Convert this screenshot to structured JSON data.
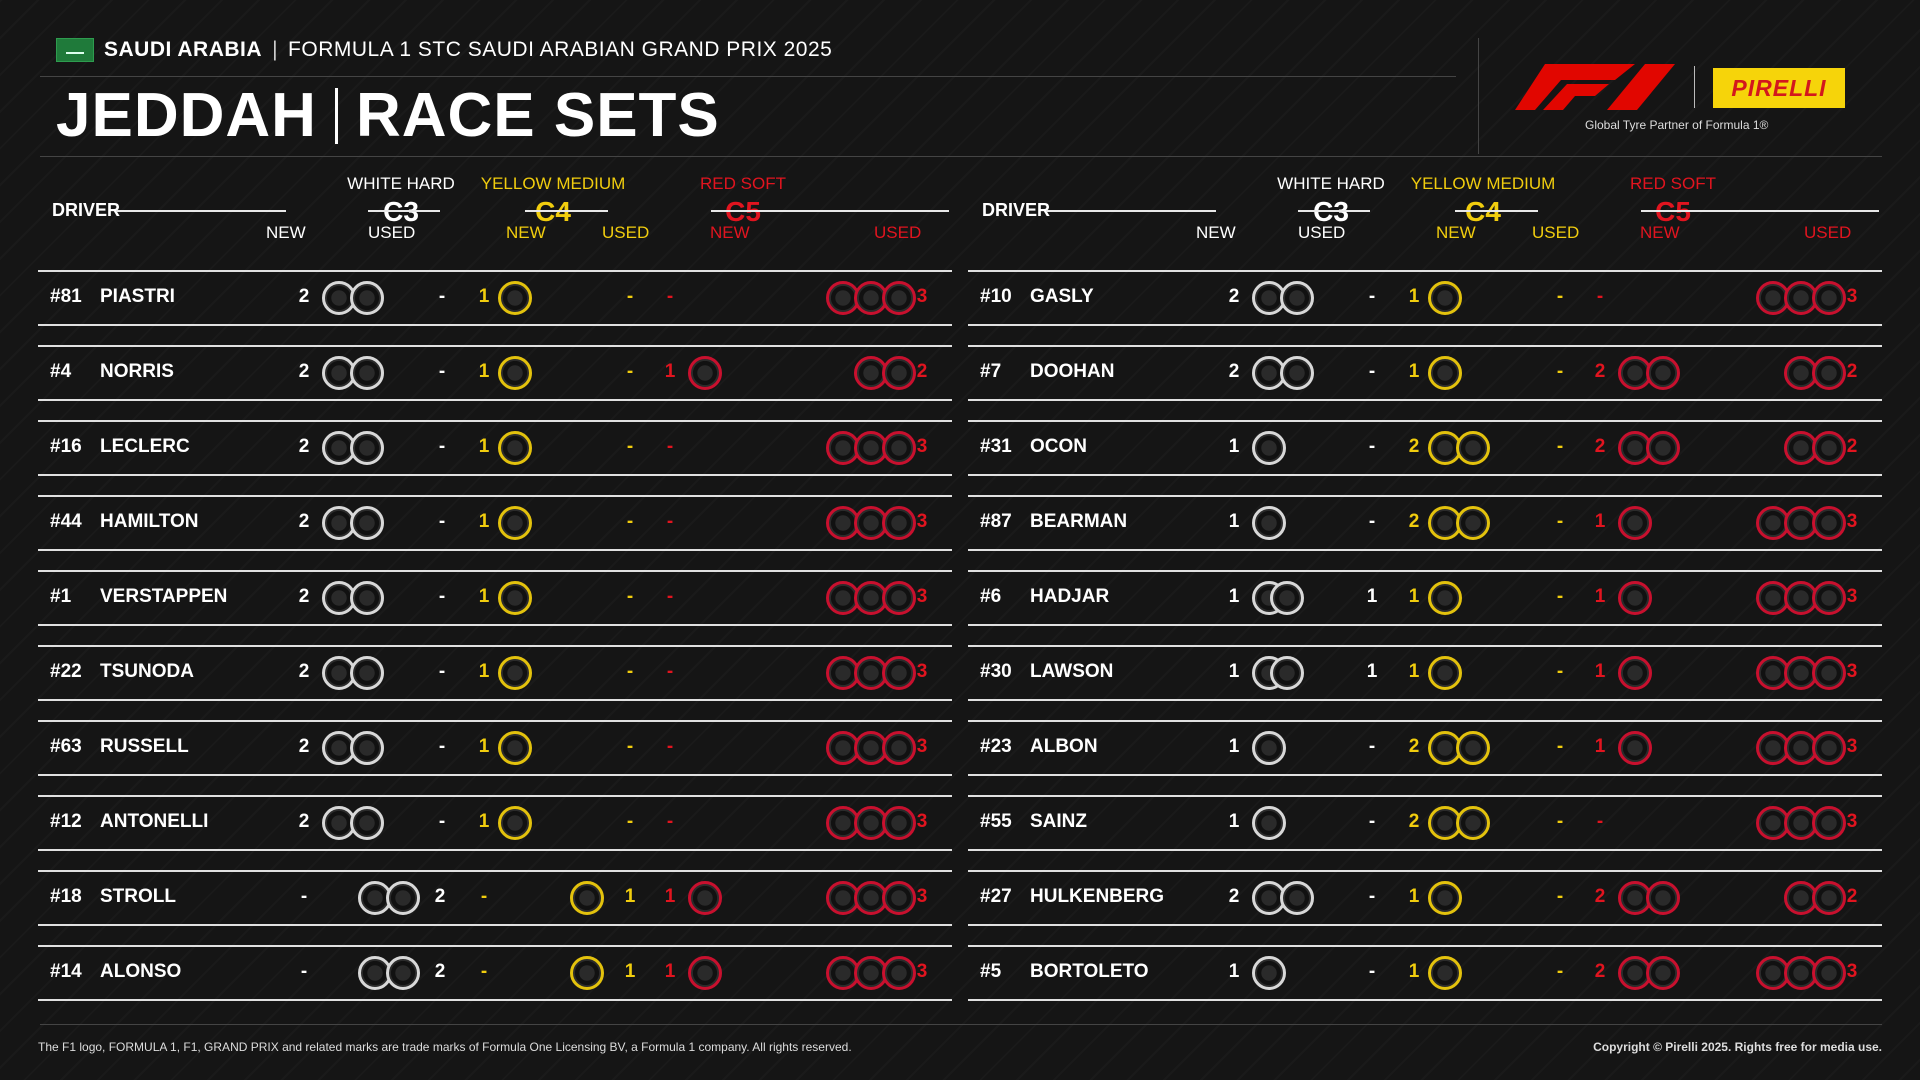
{
  "header": {
    "country": "SAUDI ARABIA",
    "event": "FORMULA 1 STC SAUDI ARABIAN GRAND PRIX 2025",
    "venue": "JEDDAH",
    "section": "RACE SETS",
    "partner": "Global Tyre Partner of Formula 1®",
    "pirelli": "PIRELLI"
  },
  "columns": {
    "driver": "DRIVER",
    "c3": {
      "label": "WHITE HARD",
      "code": "C3"
    },
    "c4": {
      "label": "YELLOW MEDIUM",
      "code": "C4"
    },
    "c5": {
      "label": "RED SOFT",
      "code": "C5"
    },
    "new": "NEW",
    "used": "USED"
  },
  "colors": {
    "white": "#d8d8d8",
    "yellow": "#e3c20d",
    "red": "#c8102e"
  },
  "left": [
    {
      "num": "#81",
      "name": "PIASTRI",
      "c3n": "2",
      "c3u": "-",
      "c4n": "1",
      "c4u": "-",
      "c5n": "-",
      "c5u": "3"
    },
    {
      "num": "#4",
      "name": "NORRIS",
      "c3n": "2",
      "c3u": "-",
      "c4n": "1",
      "c4u": "-",
      "c5n": "1",
      "c5u": "2"
    },
    {
      "num": "#16",
      "name": "LECLERC",
      "c3n": "2",
      "c3u": "-",
      "c4n": "1",
      "c4u": "-",
      "c5n": "-",
      "c5u": "3"
    },
    {
      "num": "#44",
      "name": "HAMILTON",
      "c3n": "2",
      "c3u": "-",
      "c4n": "1",
      "c4u": "-",
      "c5n": "-",
      "c5u": "3"
    },
    {
      "num": "#1",
      "name": "VERSTAPPEN",
      "c3n": "2",
      "c3u": "-",
      "c4n": "1",
      "c4u": "-",
      "c5n": "-",
      "c5u": "3"
    },
    {
      "num": "#22",
      "name": "TSUNODA",
      "c3n": "2",
      "c3u": "-",
      "c4n": "1",
      "c4u": "-",
      "c5n": "-",
      "c5u": "3"
    },
    {
      "num": "#63",
      "name": "RUSSELL",
      "c3n": "2",
      "c3u": "-",
      "c4n": "1",
      "c4u": "-",
      "c5n": "-",
      "c5u": "3"
    },
    {
      "num": "#12",
      "name": "ANTONELLI",
      "c3n": "2",
      "c3u": "-",
      "c4n": "1",
      "c4u": "-",
      "c5n": "-",
      "c5u": "3"
    },
    {
      "num": "#18",
      "name": "STROLL",
      "c3n": "-",
      "c3u": "2",
      "c4n": "-",
      "c4u": "1",
      "c5n": "1",
      "c5u": "3"
    },
    {
      "num": "#14",
      "name": "ALONSO",
      "c3n": "-",
      "c3u": "2",
      "c4n": "-",
      "c4u": "1",
      "c5n": "1",
      "c5u": "3"
    }
  ],
  "right": [
    {
      "num": "#10",
      "name": "GASLY",
      "c3n": "2",
      "c3u": "-",
      "c4n": "1",
      "c4u": "-",
      "c5n": "-",
      "c5u": "3"
    },
    {
      "num": "#7",
      "name": "DOOHAN",
      "c3n": "2",
      "c3u": "-",
      "c4n": "1",
      "c4u": "-",
      "c5n": "2",
      "c5u": "2"
    },
    {
      "num": "#31",
      "name": "OCON",
      "c3n": "1",
      "c3u": "-",
      "c4n": "2",
      "c4u": "-",
      "c5n": "2",
      "c5u": "2"
    },
    {
      "num": "#87",
      "name": "BEARMAN",
      "c3n": "1",
      "c3u": "-",
      "c4n": "2",
      "c4u": "-",
      "c5n": "1",
      "c5u": "3"
    },
    {
      "num": "#6",
      "name": "HADJAR",
      "c3n": "1",
      "c3u": "1",
      "c4n": "1",
      "c4u": "-",
      "c5n": "1",
      "c5u": "3"
    },
    {
      "num": "#30",
      "name": "LAWSON",
      "c3n": "1",
      "c3u": "1",
      "c4n": "1",
      "c4u": "-",
      "c5n": "1",
      "c5u": "3"
    },
    {
      "num": "#23",
      "name": "ALBON",
      "c3n": "1",
      "c3u": "-",
      "c4n": "2",
      "c4u": "-",
      "c5n": "1",
      "c5u": "3"
    },
    {
      "num": "#55",
      "name": "SAINZ",
      "c3n": "1",
      "c3u": "-",
      "c4n": "2",
      "c4u": "-",
      "c5n": "-",
      "c5u": "3"
    },
    {
      "num": "#27",
      "name": "HULKENBERG",
      "c3n": "2",
      "c3u": "-",
      "c4n": "1",
      "c4u": "-",
      "c5n": "2",
      "c5u": "2"
    },
    {
      "num": "#5",
      "name": "BORTOLETO",
      "c3n": "1",
      "c3u": "-",
      "c4n": "1",
      "c4u": "-",
      "c5n": "2",
      "c5u": "3"
    }
  ],
  "footer": {
    "left": "The F1 logo, FORMULA 1, F1, GRAND PRIX and related marks are trade marks of Formula One Licensing BV, a Formula 1 company. All rights reserved.",
    "right": "Copyright © Pirelli 2025. Rights free for media use."
  }
}
